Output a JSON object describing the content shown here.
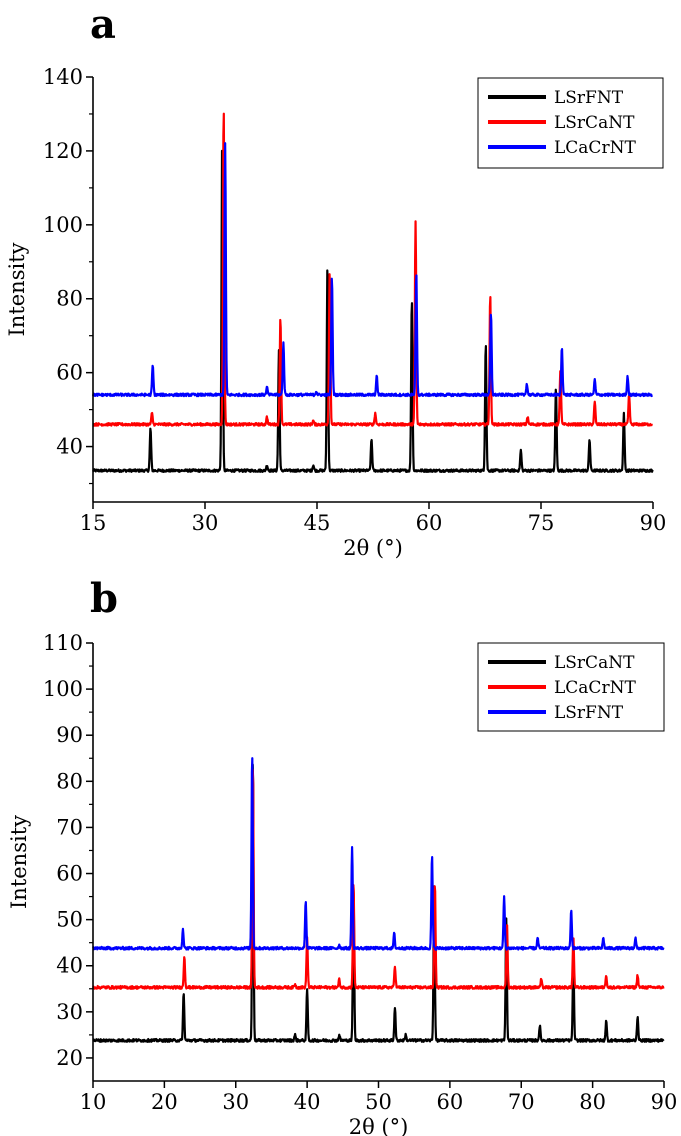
{
  "chart_data": [
    {
      "type": "line",
      "panel_label": "a",
      "xlabel": "2θ (°)",
      "ylabel": "Intensity",
      "xlim": [
        15,
        90
      ],
      "ylim": [
        25,
        140
      ],
      "xticks": [
        15,
        30,
        45,
        60,
        75,
        90
      ],
      "yticks": [
        40,
        60,
        80,
        100,
        120,
        140
      ],
      "grid": false,
      "legend_position": "top-right",
      "series": [
        {
          "name": "LSrFNT",
          "color": "#000000",
          "baseline": 33.5,
          "peaks": [
            [
              22.7,
              45
            ],
            [
              32.3,
              122
            ],
            [
              38.3,
              35
            ],
            [
              39.9,
              66
            ],
            [
              44.5,
              35
            ],
            [
              46.4,
              89
            ],
            [
              52.3,
              42
            ],
            [
              57.7,
              80
            ],
            [
              67.6,
              68
            ],
            [
              72.3,
              39
            ],
            [
              77.0,
              56
            ],
            [
              81.5,
              42
            ],
            [
              86.1,
              49
            ]
          ]
        },
        {
          "name": "LSrCaNT",
          "color": "#ff0000",
          "baseline": 46,
          "peaks": [
            [
              22.9,
              49
            ],
            [
              32.5,
              132
            ],
            [
              38.3,
              48
            ],
            [
              40.1,
              75
            ],
            [
              44.5,
              47
            ],
            [
              46.7,
              88
            ],
            [
              52.8,
              49
            ],
            [
              58.2,
              101
            ],
            [
              68.2,
              81
            ],
            [
              73.2,
              48
            ],
            [
              77.6,
              61
            ],
            [
              82.2,
              52
            ],
            [
              86.8,
              54
            ]
          ]
        },
        {
          "name": "LCaCrNT",
          "color": "#0000ff",
          "baseline": 54,
          "peaks": [
            [
              23.0,
              62
            ],
            [
              32.7,
              122
            ],
            [
              38.3,
              56
            ],
            [
              40.5,
              68
            ],
            [
              44.9,
              55
            ],
            [
              47.0,
              86
            ],
            [
              53.0,
              59
            ],
            [
              58.3,
              87
            ],
            [
              68.3,
              76
            ],
            [
              73.1,
              57
            ],
            [
              77.8,
              67
            ],
            [
              82.2,
              58
            ],
            [
              86.6,
              59
            ]
          ]
        }
      ]
    },
    {
      "type": "line",
      "panel_label": "b",
      "xlabel": "2θ (°)",
      "ylabel": "Intensity",
      "xlim": [
        10,
        90
      ],
      "ylim": [
        15,
        110
      ],
      "xticks": [
        10,
        20,
        30,
        40,
        50,
        60,
        70,
        80,
        90
      ],
      "yticks": [
        20,
        30,
        40,
        50,
        60,
        70,
        80,
        90,
        100,
        110
      ],
      "grid": false,
      "legend_position": "top-right",
      "series": [
        {
          "name": "LSrCaNT",
          "color": "#000000",
          "baseline": 23.8,
          "peaks": [
            [
              22.7,
              34
            ],
            [
              32.4,
              85
            ],
            [
              38.3,
              25
            ],
            [
              40.0,
              35
            ],
            [
              44.5,
              25
            ],
            [
              46.5,
              58
            ],
            [
              52.3,
              31
            ],
            [
              53.8,
              25
            ],
            [
              57.8,
              58
            ],
            [
              67.9,
              50
            ],
            [
              72.6,
              27
            ],
            [
              77.3,
              41
            ],
            [
              81.9,
              28
            ],
            [
              86.3,
              29
            ]
          ]
        },
        {
          "name": "LCaCrNT",
          "color": "#ff0000",
          "baseline": 35.3,
          "peaks": [
            [
              22.8,
              42
            ],
            [
              32.4,
              84
            ],
            [
              38.3,
              36
            ],
            [
              40.0,
              46
            ],
            [
              44.5,
              37
            ],
            [
              46.5,
              58
            ],
            [
              52.3,
              40
            ],
            [
              57.9,
              58
            ],
            [
              68.0,
              49
            ],
            [
              72.8,
              37
            ],
            [
              77.3,
              46
            ],
            [
              81.9,
              38
            ],
            [
              86.3,
              38
            ]
          ]
        },
        {
          "name": "LSrFNT",
          "color": "#0000ff",
          "baseline": 43.8,
          "peaks": [
            [
              22.6,
              48
            ],
            [
              32.3,
              86
            ],
            [
              39.8,
              54
            ],
            [
              44.5,
              44.5
            ],
            [
              46.3,
              66
            ],
            [
              52.2,
              47
            ],
            [
              57.5,
              64
            ],
            [
              67.6,
              55
            ],
            [
              72.3,
              46
            ],
            [
              77.0,
              52
            ],
            [
              81.5,
              46
            ],
            [
              86.0,
              46
            ]
          ]
        }
      ]
    }
  ]
}
